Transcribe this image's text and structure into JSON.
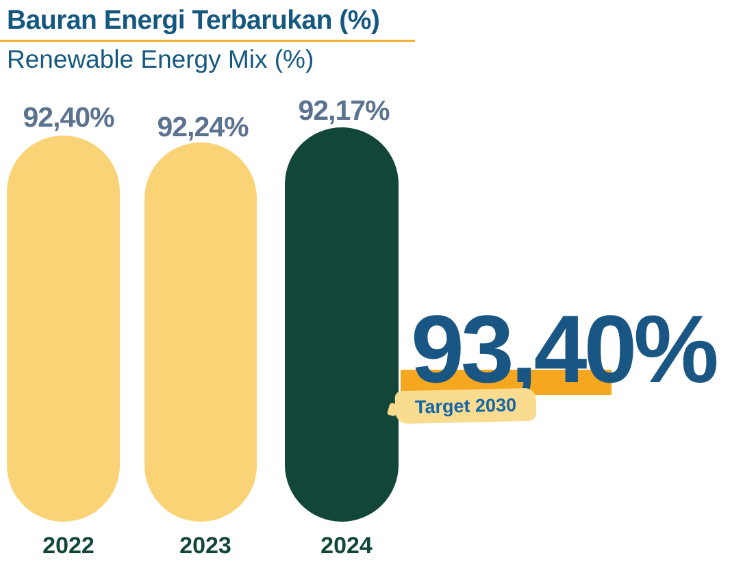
{
  "chart_data": {
    "type": "bar",
    "title": "Bauran Energi Terbarukan (%)",
    "subtitle": "Renewable Energy Mix (%)",
    "categories": [
      "2022",
      "2023",
      "2024"
    ],
    "values": [
      92.4,
      92.24,
      92.17
    ],
    "value_labels": [
      "92,40%",
      "92,24%",
      "92,17%"
    ],
    "xlabel": "",
    "ylabel": "",
    "ylim": [
      0,
      100
    ],
    "grid": false,
    "legend": "none",
    "target": {
      "year": 2030,
      "value": 93.4,
      "value_label": "93,40%",
      "label": "Target 2030"
    },
    "colors": {
      "bar_yellow": "#F9D376",
      "bar_green": "#114639",
      "title_blue": "#14587F",
      "value_label_slate": "#5C7390",
      "year_label_green": "#12463A",
      "divider_yellow": "#F2B02F",
      "target_band_orange": "#F5A81F",
      "target_brush_yellow": "#FADC90",
      "target_text_blue": "#1566A7",
      "target_value_blue": "#1A5683"
    }
  }
}
